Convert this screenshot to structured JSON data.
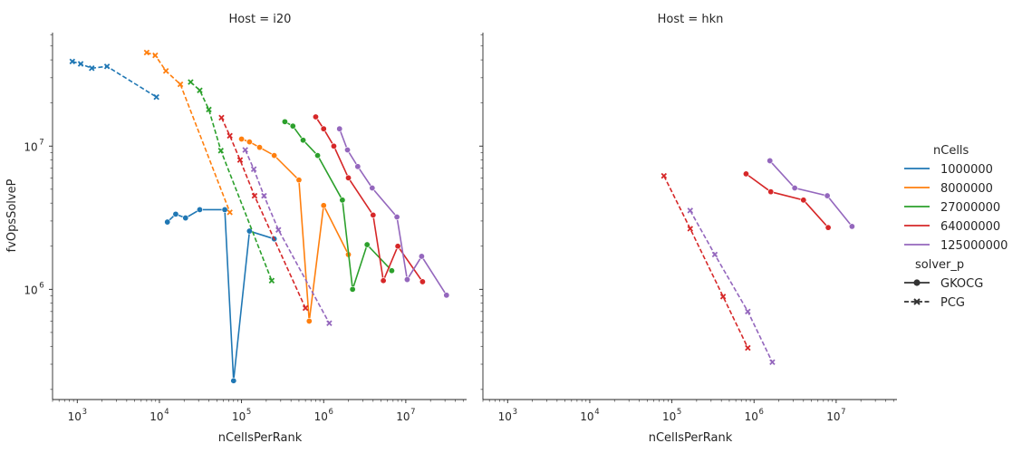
{
  "chart_data": {
    "type": "line",
    "x_scale": "log",
    "y_scale": "log",
    "xlim": [
      500,
      55000000
    ],
    "ylim": [
      170000,
      62000000
    ],
    "grid": false,
    "legend_position": "right",
    "ylabel": "fvOpsSolveP",
    "xlabel": "nCellsPerRank",
    "x_ticks": [
      {
        "value": 1000,
        "label": "10",
        "exp": "3"
      },
      {
        "value": 10000,
        "label": "10",
        "exp": "4"
      },
      {
        "value": 100000,
        "label": "10",
        "exp": "5"
      },
      {
        "value": 1000000,
        "label": "10",
        "exp": "6"
      },
      {
        "value": 10000000,
        "label": "10",
        "exp": "7"
      }
    ],
    "y_ticks": [
      {
        "value": 1000000,
        "label": "10",
        "exp": "6"
      },
      {
        "value": 10000000,
        "label": "10",
        "exp": "7"
      }
    ],
    "panels": [
      {
        "title": "Host = i20",
        "series": [
          {
            "ncells": "1000000",
            "solver": "GKOCG",
            "points": [
              [
                12500,
                2950000
              ],
              [
                15800,
                3350000
              ],
              [
                20800,
                3150000
              ],
              [
                31000,
                3600000
              ],
              [
                62500,
                3600000
              ],
              [
                80000,
                230000
              ],
              [
                125000,
                2550000
              ],
              [
                250000,
                2250000
              ]
            ]
          },
          {
            "ncells": "1000000",
            "solver": "PCG",
            "points": [
              [
                870,
                39000000
              ],
              [
                1100,
                37500000
              ],
              [
                1500,
                35000000
              ],
              [
                2300,
                36000000
              ],
              [
                9200,
                22000000
              ]
            ]
          },
          {
            "ncells": "8000000",
            "solver": "GKOCG",
            "points": [
              [
                100000,
                11200000
              ],
              [
                125000,
                10700000
              ],
              [
                166000,
                9800000
              ],
              [
                250000,
                8600000
              ],
              [
                500000,
                5800000
              ],
              [
                667000,
                600000
              ],
              [
                1000000,
                3850000
              ],
              [
                2000000,
                1750000
              ]
            ]
          },
          {
            "ncells": "8000000",
            "solver": "PCG",
            "points": [
              [
                7000,
                45000000
              ],
              [
                8900,
                43000000
              ],
              [
                12000,
                33500000
              ],
              [
                18000,
                27000000
              ],
              [
                72000,
                3450000
              ]
            ]
          },
          {
            "ncells": "27000000",
            "solver": "GKOCG",
            "points": [
              [
                337000,
                14800000
              ],
              [
                422000,
                13800000
              ],
              [
                562000,
                11000000
              ],
              [
                844000,
                8600000
              ],
              [
                1690000,
                4200000
              ],
              [
                2250000,
                1000000
              ],
              [
                3380000,
                2050000
              ],
              [
                6750000,
                1350000
              ]
            ]
          },
          {
            "ncells": "27000000",
            "solver": "PCG",
            "points": [
              [
                24000,
                28000000
              ],
              [
                31000,
                24500000
              ],
              [
                40000,
                18000000
              ],
              [
                56000,
                9300000
              ],
              [
                233000,
                1150000
              ]
            ]
          },
          {
            "ncells": "64000000",
            "solver": "GKOCG",
            "points": [
              [
                800000,
                16000000
              ],
              [
                1000000,
                13200000
              ],
              [
                1330000,
                10000000
              ],
              [
                2000000,
                6000000
              ],
              [
                4000000,
                3300000
              ],
              [
                5330000,
                1150000
              ],
              [
                8000000,
                2000000
              ],
              [
                16000000,
                1130000
              ]
            ]
          },
          {
            "ncells": "64000000",
            "solver": "PCG",
            "points": [
              [
                57000,
                15800000
              ],
              [
                72000,
                11800000
              ],
              [
                96000,
                8000000
              ],
              [
                144000,
                4500000
              ],
              [
                600000,
                740000
              ]
            ]
          },
          {
            "ncells": "125000000",
            "solver": "GKOCG",
            "points": [
              [
                1560000,
                13200000
              ],
              [
                1950000,
                9400000
              ],
              [
                2600000,
                7200000
              ],
              [
                3900000,
                5100000
              ],
              [
                7800000,
                3200000
              ],
              [
                10400000,
                1170000
              ],
              [
                15600000,
                1700000
              ],
              [
                31300000,
                910000
              ]
            ]
          },
          {
            "ncells": "125000000",
            "solver": "PCG",
            "points": [
              [
                111000,
                9400000
              ],
              [
                141000,
                6900000
              ],
              [
                188000,
                4500000
              ],
              [
                281000,
                2600000
              ],
              [
                1170000,
                580000
              ]
            ]
          }
        ]
      },
      {
        "title": "Host = hkn",
        "series": [
          {
            "ncells": "64000000",
            "solver": "GKOCG",
            "points": [
              [
                800000,
                6400000
              ],
              [
                1600000,
                4800000
              ],
              [
                4000000,
                4200000
              ],
              [
                8000000,
                2700000
              ]
            ]
          },
          {
            "ncells": "64000000",
            "solver": "PCG",
            "points": [
              [
                80000,
                6200000
              ],
              [
                167000,
                2650000
              ],
              [
                420000,
                890000
              ],
              [
                840000,
                390000
              ]
            ]
          },
          {
            "ncells": "125000000",
            "solver": "GKOCG",
            "points": [
              [
                1560000,
                7900000
              ],
              [
                3130000,
                5100000
              ],
              [
                7800000,
                4500000
              ],
              [
                15600000,
                2750000
              ]
            ]
          },
          {
            "ncells": "125000000",
            "solver": "PCG",
            "points": [
              [
                167000,
                3550000
              ],
              [
                333000,
                1750000
              ],
              [
                840000,
                700000
              ],
              [
                1670000,
                310000
              ]
            ]
          }
        ]
      }
    ],
    "legend": {
      "hue_title": "nCells",
      "hue_entries": [
        {
          "label": "1000000",
          "color": "#1f77b4"
        },
        {
          "label": "8000000",
          "color": "#ff7f0e"
        },
        {
          "label": "27000000",
          "color": "#2ca02c"
        },
        {
          "label": "64000000",
          "color": "#d62728"
        },
        {
          "label": "125000000",
          "color": "#9467bd"
        }
      ],
      "style_title": "solver_p",
      "style_entries": [
        {
          "label": "GKOCG",
          "marker": "circle",
          "dash": "solid"
        },
        {
          "label": "PCG",
          "marker": "x",
          "dash": "dashed"
        }
      ]
    }
  }
}
